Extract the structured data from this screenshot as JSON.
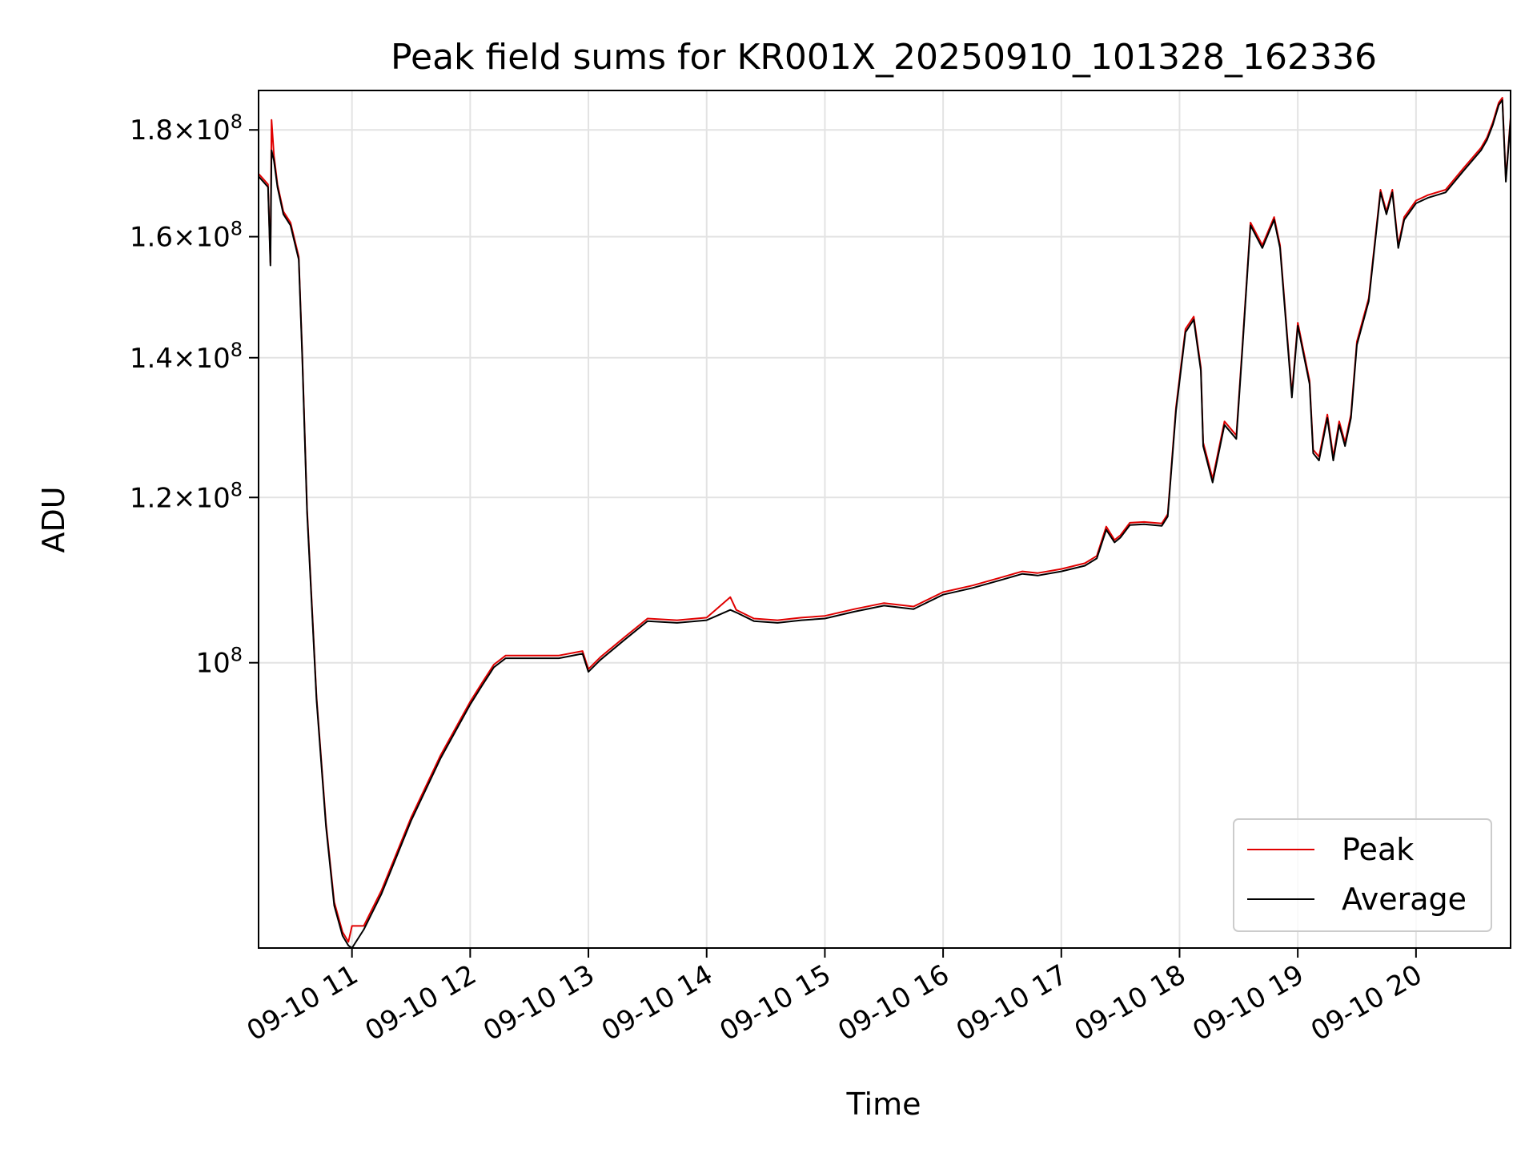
{
  "chart_data": {
    "type": "line",
    "title": "Peak field sums for KR001X_20250910_101328_162336",
    "xlabel": "Time",
    "ylabel": "ADU",
    "yscale": "log",
    "grid": true,
    "legend_position": "lower right",
    "x_domain_hours": [
      10.21,
      20.8
    ],
    "ylim": [
      73000000,
      188000000
    ],
    "x_ticks": [
      "09-10 11",
      "09-10 12",
      "09-10 13",
      "09-10 14",
      "09-10 15",
      "09-10 16",
      "09-10 17",
      "09-10 18",
      "09-10 19",
      "09-10 20"
    ],
    "y_ticks": [
      {
        "value": 100000000,
        "mantissa": "",
        "exp": "8"
      },
      {
        "value": 120000000,
        "mantissa": "1.2",
        "exp": "8"
      },
      {
        "value": 140000000,
        "mantissa": "1.4",
        "exp": "8"
      },
      {
        "value": 160000000,
        "mantissa": "1.6",
        "exp": "8"
      },
      {
        "value": 180000000,
        "mantissa": "1.8",
        "exp": "8"
      }
    ],
    "series": [
      {
        "name": "Average",
        "color": "#000000",
        "x_hours": [
          10.21,
          10.25,
          10.29,
          10.3,
          10.31,
          10.32,
          10.34,
          10.37,
          10.42,
          10.48,
          10.55,
          10.58,
          10.62,
          10.7,
          10.78,
          10.85,
          10.92,
          10.97,
          11.0,
          11.1,
          11.25,
          11.5,
          11.75,
          12.0,
          12.1,
          12.2,
          12.3,
          12.5,
          12.75,
          12.95,
          13.0,
          13.1,
          13.3,
          13.5,
          13.75,
          14.0,
          14.2,
          14.25,
          14.4,
          14.6,
          14.8,
          15.0,
          15.25,
          15.5,
          15.75,
          16.0,
          16.25,
          16.5,
          16.67,
          16.8,
          17.0,
          17.2,
          17.3,
          17.38,
          17.45,
          17.5,
          17.58,
          17.7,
          17.85,
          17.9,
          17.97,
          18.05,
          18.12,
          18.18,
          18.2,
          18.28,
          18.38,
          18.48,
          18.53,
          18.6,
          18.7,
          18.8,
          18.85,
          18.95,
          19.0,
          19.1,
          19.13,
          19.18,
          19.25,
          19.3,
          19.35,
          19.4,
          19.45,
          19.5,
          19.6,
          19.7,
          19.75,
          19.8,
          19.85,
          19.9,
          20.0,
          20.1,
          20.25,
          20.4,
          20.55,
          20.6,
          20.65,
          20.7,
          20.73,
          20.76,
          20.8
        ],
        "values": [
          171000000,
          170000000,
          169000000,
          162000000,
          155000000,
          176000000,
          174000000,
          169000000,
          164000000,
          162000000,
          156000000,
          140000000,
          118000000,
          96000000,
          83500000,
          76500000,
          74000000,
          73200000,
          73000000,
          74500000,
          77500000,
          84000000,
          90000000,
          95500000,
          97500000,
          99500000,
          100500000,
          100500000,
          100500000,
          101000000,
          99000000,
          100300000,
          102500000,
          104700000,
          104500000,
          104800000,
          106000000,
          105700000,
          104700000,
          104500000,
          104800000,
          105000000,
          105800000,
          106500000,
          106100000,
          107800000,
          108600000,
          109600000,
          110300000,
          110100000,
          110600000,
          111300000,
          112200000,
          115800000,
          114200000,
          114800000,
          116400000,
          116500000,
          116300000,
          117500000,
          132000000,
          144000000,
          146000000,
          138000000,
          127000000,
          122000000,
          130000000,
          128000000,
          141000000,
          162000000,
          158000000,
          163000000,
          158000000,
          134000000,
          145000000,
          136000000,
          126000000,
          125000000,
          131000000,
          125000000,
          130000000,
          127000000,
          131000000,
          142000000,
          149000000,
          168000000,
          164000000,
          168000000,
          158000000,
          163000000,
          166000000,
          167000000,
          168000000,
          172000000,
          176000000,
          178000000,
          181000000,
          185000000,
          186000000,
          170000000,
          182000000
        ]
      },
      {
        "name": "Peak",
        "color": "#e00000",
        "x_hours": [
          10.21,
          10.25,
          10.29,
          10.3,
          10.31,
          10.32,
          10.34,
          10.37,
          10.42,
          10.48,
          10.55,
          10.58,
          10.62,
          10.7,
          10.78,
          10.85,
          10.92,
          10.97,
          11.0,
          11.1,
          11.25,
          11.5,
          11.75,
          12.0,
          12.1,
          12.2,
          12.3,
          12.5,
          12.75,
          12.95,
          13.0,
          13.1,
          13.3,
          13.5,
          13.75,
          14.0,
          14.2,
          14.25,
          14.4,
          14.6,
          14.8,
          15.0,
          15.25,
          15.5,
          15.75,
          16.0,
          16.25,
          16.5,
          16.67,
          16.8,
          17.0,
          17.2,
          17.3,
          17.38,
          17.45,
          17.5,
          17.58,
          17.7,
          17.85,
          17.9,
          17.97,
          18.05,
          18.12,
          18.18,
          18.2,
          18.28,
          18.38,
          18.48,
          18.53,
          18.6,
          18.7,
          18.8,
          18.85,
          18.95,
          19.0,
          19.1,
          19.13,
          19.18,
          19.25,
          19.3,
          19.35,
          19.4,
          19.45,
          19.5,
          19.6,
          19.7,
          19.75,
          19.8,
          19.85,
          19.9,
          20.0,
          20.1,
          20.25,
          20.4,
          20.55,
          20.6,
          20.65,
          20.7,
          20.73,
          20.76,
          20.8
        ],
        "values": [
          171500000,
          170500000,
          169500000,
          162500000,
          155500000,
          182000000,
          175000000,
          169500000,
          164500000,
          162500000,
          156500000,
          140500000,
          118500000,
          96300000,
          83800000,
          76800000,
          74300000,
          73500000,
          74800000,
          74800000,
          77800000,
          84300000,
          90300000,
          95800000,
          97800000,
          99800000,
          100800000,
          100800000,
          100800000,
          101300000,
          99300000,
          100600000,
          102800000,
          105000000,
          104800000,
          105100000,
          107500000,
          106000000,
          105000000,
          104800000,
          105100000,
          105300000,
          106100000,
          106800000,
          106400000,
          108100000,
          108900000,
          109900000,
          110600000,
          110400000,
          110900000,
          111600000,
          112500000,
          116200000,
          114500000,
          115100000,
          116700000,
          116800000,
          116600000,
          117800000,
          132500000,
          144500000,
          146500000,
          138500000,
          127500000,
          122500000,
          130500000,
          128500000,
          141500000,
          162500000,
          158500000,
          163500000,
          158500000,
          134500000,
          145500000,
          136500000,
          126500000,
          125500000,
          131500000,
          125500000,
          130500000,
          127500000,
          131500000,
          142500000,
          149500000,
          168500000,
          164500000,
          168500000,
          158500000,
          163500000,
          166500000,
          167500000,
          168500000,
          172500000,
          176500000,
          178500000,
          181500000,
          185500000,
          186500000,
          170500000,
          182500000
        ]
      }
    ]
  }
}
